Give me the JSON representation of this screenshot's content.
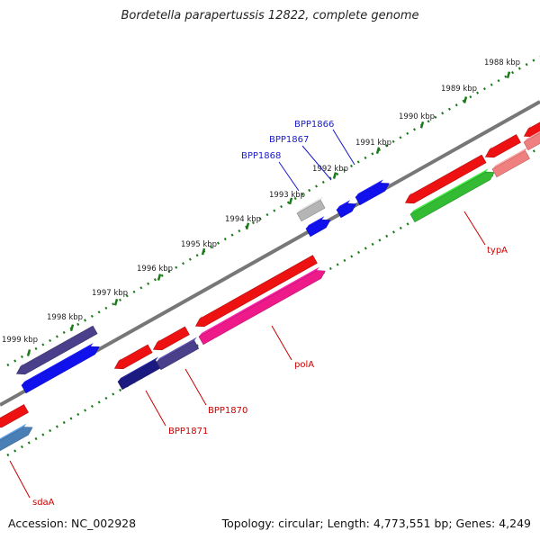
{
  "title": "Bordetella parapertussis 12822, complete genome",
  "footer": {
    "accession": "Accession: NC_002928",
    "summary": "Topology: circular; Length: 4,773,551 bp; Genes: 4,249"
  },
  "ticks": [
    "1988 kbp",
    "1989 kbp",
    "1990 kbp",
    "1991 kbp",
    "1992 kbp",
    "1993 kbp",
    "1994 kbp",
    "1995 kbp",
    "1996 kbp",
    "1997 kbp",
    "1998 kbp",
    "1999 kbp"
  ],
  "gene_labels": {
    "BPP1866": "BPP1866",
    "BPP1867": "BPP1867",
    "BPP1868": "BPP1868",
    "typA": "typA",
    "polA": "polA",
    "BPP1870": "BPP1870",
    "BPP1871": "BPP1871",
    "sdaA": "sdaA"
  },
  "colors": {
    "label_blue": "#1a1acc",
    "label_red": "#cc0000",
    "tick_green": "#1a7a1a",
    "backbone": "#777777",
    "red": "#ee1111",
    "blue": "#1111ee",
    "navy": "#1a1a80",
    "slate": "#4a3f8a",
    "magenta": "#ee1a8a",
    "green": "#33bb33",
    "steel": "#4a7fb5",
    "pink": "#f08080",
    "gray": "#b5b5b5"
  }
}
